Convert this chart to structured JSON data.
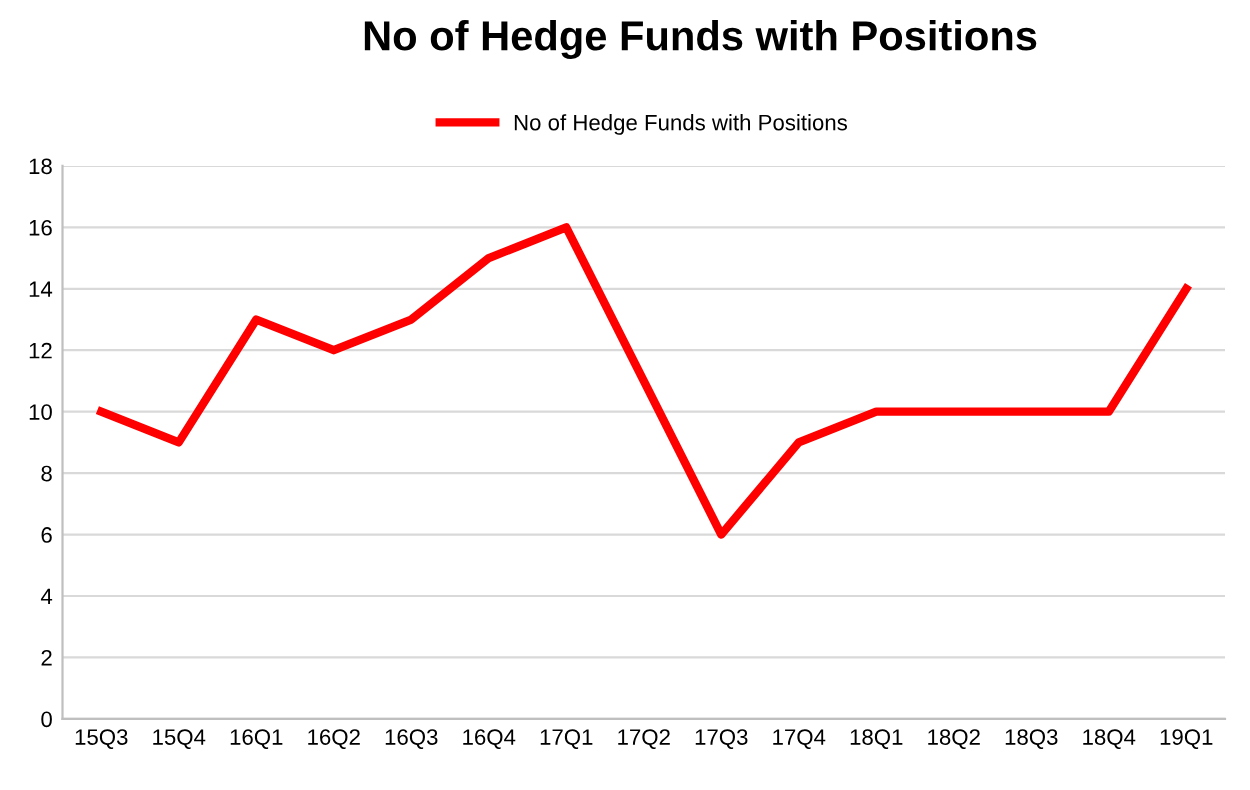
{
  "chart_data": {
    "type": "line",
    "title": "No of Hedge Funds with Positions",
    "categories": [
      "15Q3",
      "15Q4",
      "16Q1",
      "16Q2",
      "16Q3",
      "16Q4",
      "17Q1",
      "17Q2",
      "17Q3",
      "17Q4",
      "18Q1",
      "18Q2",
      "18Q3",
      "18Q4",
      "19Q1"
    ],
    "series": [
      {
        "name": "No of Hedge Funds with Positions",
        "color": "#ff0000",
        "values": [
          10,
          9,
          13,
          12,
          13,
          15,
          16,
          11,
          6,
          9,
          10,
          10,
          10,
          10,
          14
        ]
      }
    ],
    "ylim": [
      0,
      18
    ],
    "yticks": [
      0,
      2,
      4,
      6,
      8,
      10,
      12,
      14,
      16,
      18
    ],
    "grid": "y",
    "legend": "top",
    "marker": "none",
    "line_style": "solid"
  }
}
